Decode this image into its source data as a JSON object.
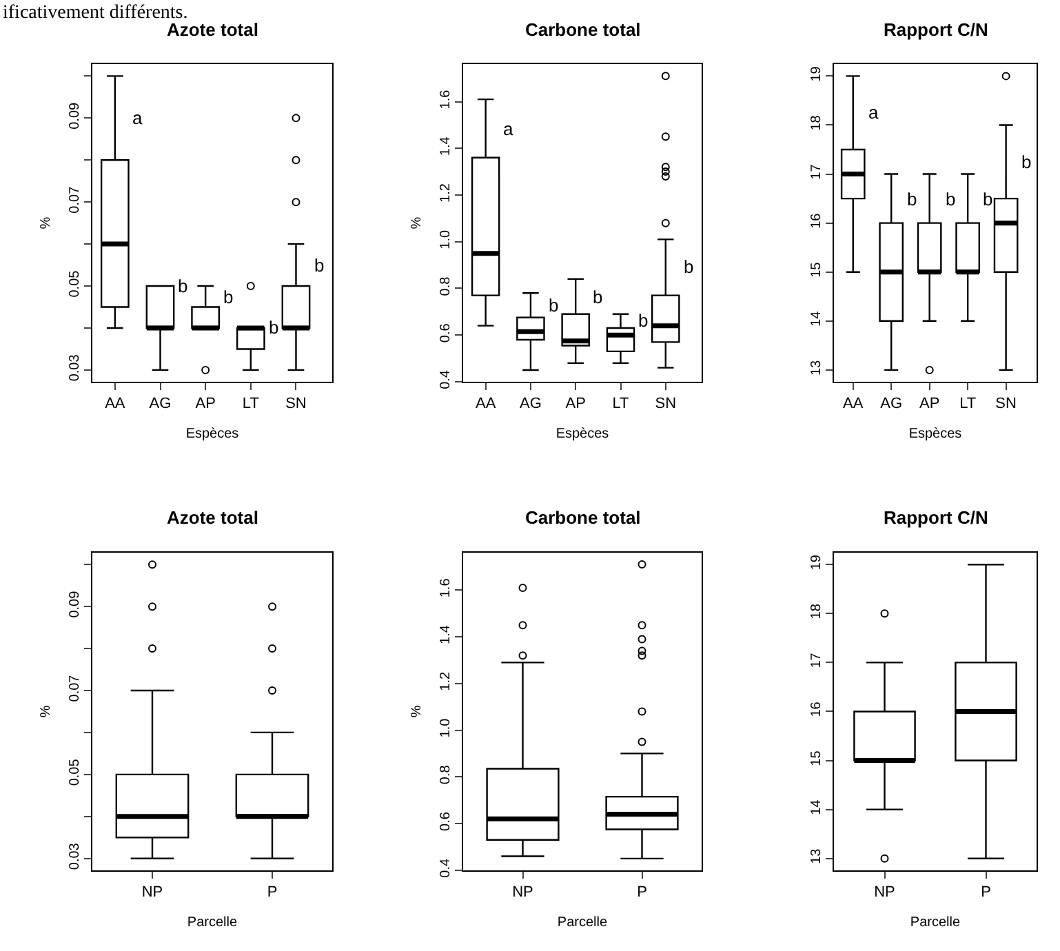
{
  "chart_data": [
    {
      "type": "box",
      "title": "Azote total",
      "xlabel": "Espèces",
      "ylabel": "%",
      "categories": [
        "AA",
        "AG",
        "AP",
        "LT",
        "SN"
      ],
      "boxes": [
        {
          "low": 0.04,
          "q1": 0.045,
          "median": 0.06,
          "q3": 0.08,
          "high": 0.1
        },
        {
          "low": 0.03,
          "q1": 0.04,
          "median": 0.04,
          "q3": 0.05,
          "high": 0.05
        },
        {
          "low": 0.04,
          "q1": 0.04,
          "median": 0.04,
          "q3": 0.045,
          "high": 0.05,
          "outliers": [
            0.03
          ]
        },
        {
          "low": 0.03,
          "q1": 0.035,
          "median": 0.04,
          "q3": 0.04,
          "high": 0.04,
          "outliers": [
            0.05
          ]
        },
        {
          "low": 0.03,
          "q1": 0.04,
          "median": 0.04,
          "q3": 0.05,
          "high": 0.06,
          "outliers": [
            0.07,
            0.08,
            0.09
          ]
        }
      ],
      "ylim": [
        0.0272,
        0.1028
      ],
      "yticks": [
        0.03,
        {
          "value": 0.04,
          "label": null
        },
        0.05,
        {
          "value": 0.06,
          "label": null
        },
        0.07,
        {
          "value": 0.08,
          "label": null
        },
        0.09,
        {
          "value": 0.1,
          "label": null
        }
      ],
      "annotations": [
        "ificativement différents.",
        "a",
        "b",
        "b",
        "b",
        "b"
      ]
    },
    {
      "type": "box",
      "title": "Carbone total",
      "xlabel": "Espèces",
      "ylabel": "%",
      "categories": [
        "AA",
        "AG",
        "AP",
        "LT",
        "SN"
      ],
      "boxes": [
        {
          "low": 0.64,
          "q1": 0.77,
          "median": 0.95,
          "q3": 1.36,
          "high": 1.61
        },
        {
          "low": 0.45,
          "q1": 0.58,
          "median": 0.615,
          "q3": 0.675,
          "high": 0.78
        },
        {
          "low": 0.48,
          "q1": 0.555,
          "median": 0.575,
          "q3": 0.69,
          "high": 0.84
        },
        {
          "low": 0.48,
          "q1": 0.53,
          "median": 0.6,
          "q3": 0.63,
          "high": 0.69
        },
        {
          "low": 0.46,
          "q1": 0.57,
          "median": 0.64,
          "q3": 0.77,
          "high": 1.01,
          "outliers": [
            1.08,
            1.28,
            1.3,
            1.32,
            1.45,
            1.71
          ]
        }
      ],
      "ylim": [
        0.4,
        1.76
      ],
      "yticks": [
        0.4,
        0.6,
        0.8,
        {
          "value": 1.0,
          "label": "1.0"
        },
        1.2,
        1.4,
        1.6
      ],
      "annotations": [
        "a",
        "b",
        "b",
        "b",
        "b"
      ]
    },
    {
      "type": "box",
      "title": "Rapport C/N",
      "xlabel": "Espèces",
      "categories": [
        "AA",
        "AG",
        "AP",
        "LT",
        "SN"
      ],
      "boxes": [
        {
          "low": 15,
          "q1": 16.5,
          "median": 17,
          "q3": 17.5,
          "high": 19
        },
        {
          "low": 13,
          "q1": 14,
          "median": 15,
          "q3": 16,
          "high": 17
        },
        {
          "low": 14,
          "q1": 15,
          "median": 15,
          "q3": 16,
          "high": 17,
          "outliers": [
            13
          ]
        },
        {
          "low": 14,
          "q1": 15,
          "median": 15,
          "q3": 16,
          "high": 17
        },
        {
          "low": 13,
          "q1": 15,
          "median": 16,
          "q3": 16.5,
          "high": 18,
          "outliers": [
            19
          ]
        }
      ],
      "ylim": [
        12.76,
        19.24
      ],
      "yticks": [
        13,
        14,
        15,
        16,
        17,
        18,
        19
      ],
      "annotations": [
        "a",
        "b",
        "b",
        "b",
        "b"
      ]
    },
    {
      "type": "box",
      "title": "Azote total",
      "xlabel": "Parcelle",
      "ylabel": "%",
      "categories": [
        "NP",
        "P"
      ],
      "boxes": [
        {
          "low": 0.03,
          "q1": 0.035,
          "median": 0.04,
          "q3": 0.05,
          "high": 0.07,
          "outliers": [
            0.08,
            0.09,
            0.1
          ]
        },
        {
          "low": 0.03,
          "q1": 0.04,
          "median": 0.04,
          "q3": 0.05,
          "high": 0.06,
          "outliers": [
            0.07,
            0.08,
            0.09
          ]
        }
      ],
      "ylim": [
        0.0272,
        0.1028
      ],
      "yticks": [
        0.03,
        {
          "value": 0.04,
          "label": null
        },
        0.05,
        {
          "value": 0.06,
          "label": null
        },
        0.07,
        {
          "value": 0.08,
          "label": null
        },
        0.09,
        {
          "value": 0.1,
          "label": null
        }
      ]
    },
    {
      "type": "box",
      "title": "Carbone total",
      "xlabel": "Parcelle",
      "ylabel": "%",
      "categories": [
        "NP",
        "P"
      ],
      "boxes": [
        {
          "low": 0.46,
          "q1": 0.53,
          "median": 0.62,
          "q3": 0.835,
          "high": 1.29,
          "outliers": [
            1.32,
            1.45,
            1.61
          ]
        },
        {
          "low": 0.45,
          "q1": 0.575,
          "median": 0.64,
          "q3": 0.715,
          "high": 0.9,
          "outliers": [
            0.95,
            1.08,
            1.32,
            1.34,
            1.39,
            1.45,
            1.71
          ]
        }
      ],
      "ylim": [
        0.4,
        1.76
      ],
      "yticks": [
        0.4,
        0.6,
        0.8,
        {
          "value": 1.0,
          "label": "1.0"
        },
        1.2,
        1.4,
        1.6
      ]
    },
    {
      "type": "box",
      "title": "Rapport C/N",
      "xlabel": "Parcelle",
      "categories": [
        "NP",
        "P"
      ],
      "boxes": [
        {
          "low": 14,
          "q1": 15,
          "median": 15,
          "q3": 16,
          "high": 17,
          "outliers": [
            13,
            18
          ]
        },
        {
          "low": 13,
          "q1": 15,
          "median": 16,
          "q3": 17,
          "high": 19
        }
      ],
      "ylim": [
        12.76,
        19.24
      ],
      "yticks": [
        13,
        14,
        15,
        16,
        17,
        18,
        19
      ]
    }
  ]
}
